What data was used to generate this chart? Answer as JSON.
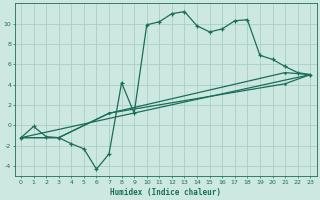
{
  "xlabel": "Humidex (Indice chaleur)",
  "ylabel": "",
  "bg_color": "#cce8e0",
  "grid_color": "#aacfc8",
  "line_color": "#1a6e5a",
  "xlim": [
    -0.5,
    23.5
  ],
  "ylim": [
    -5,
    12
  ],
  "xticks": [
    0,
    1,
    2,
    3,
    4,
    5,
    6,
    7,
    8,
    9,
    10,
    11,
    12,
    13,
    14,
    15,
    16,
    17,
    18,
    19,
    20,
    21,
    22,
    23
  ],
  "yticks": [
    -4,
    -2,
    0,
    2,
    4,
    6,
    8,
    10
  ],
  "line1_x": [
    0,
    1,
    2,
    3,
    4,
    5,
    6,
    7,
    8,
    9,
    10,
    11,
    12,
    13,
    14,
    15,
    16,
    17,
    18,
    19,
    20,
    21,
    22,
    23
  ],
  "line1_y": [
    -1.2,
    -0.1,
    -1.1,
    -1.2,
    -1.8,
    -2.3,
    -4.3,
    -2.8,
    4.2,
    1.2,
    9.9,
    10.2,
    11.0,
    11.2,
    9.8,
    9.2,
    9.5,
    10.3,
    10.4,
    6.9,
    6.5,
    5.8,
    5.2,
    5.0
  ],
  "line2_x": [
    0,
    3,
    7,
    21,
    23
  ],
  "line2_y": [
    -1.2,
    -1.2,
    1.2,
    5.2,
    5.0
  ],
  "line3_x": [
    0,
    3,
    7,
    21,
    23
  ],
  "line3_y": [
    -1.2,
    -1.2,
    1.2,
    4.1,
    5.0
  ],
  "line4_x": [
    0,
    23
  ],
  "line4_y": [
    -1.2,
    5.0
  ]
}
